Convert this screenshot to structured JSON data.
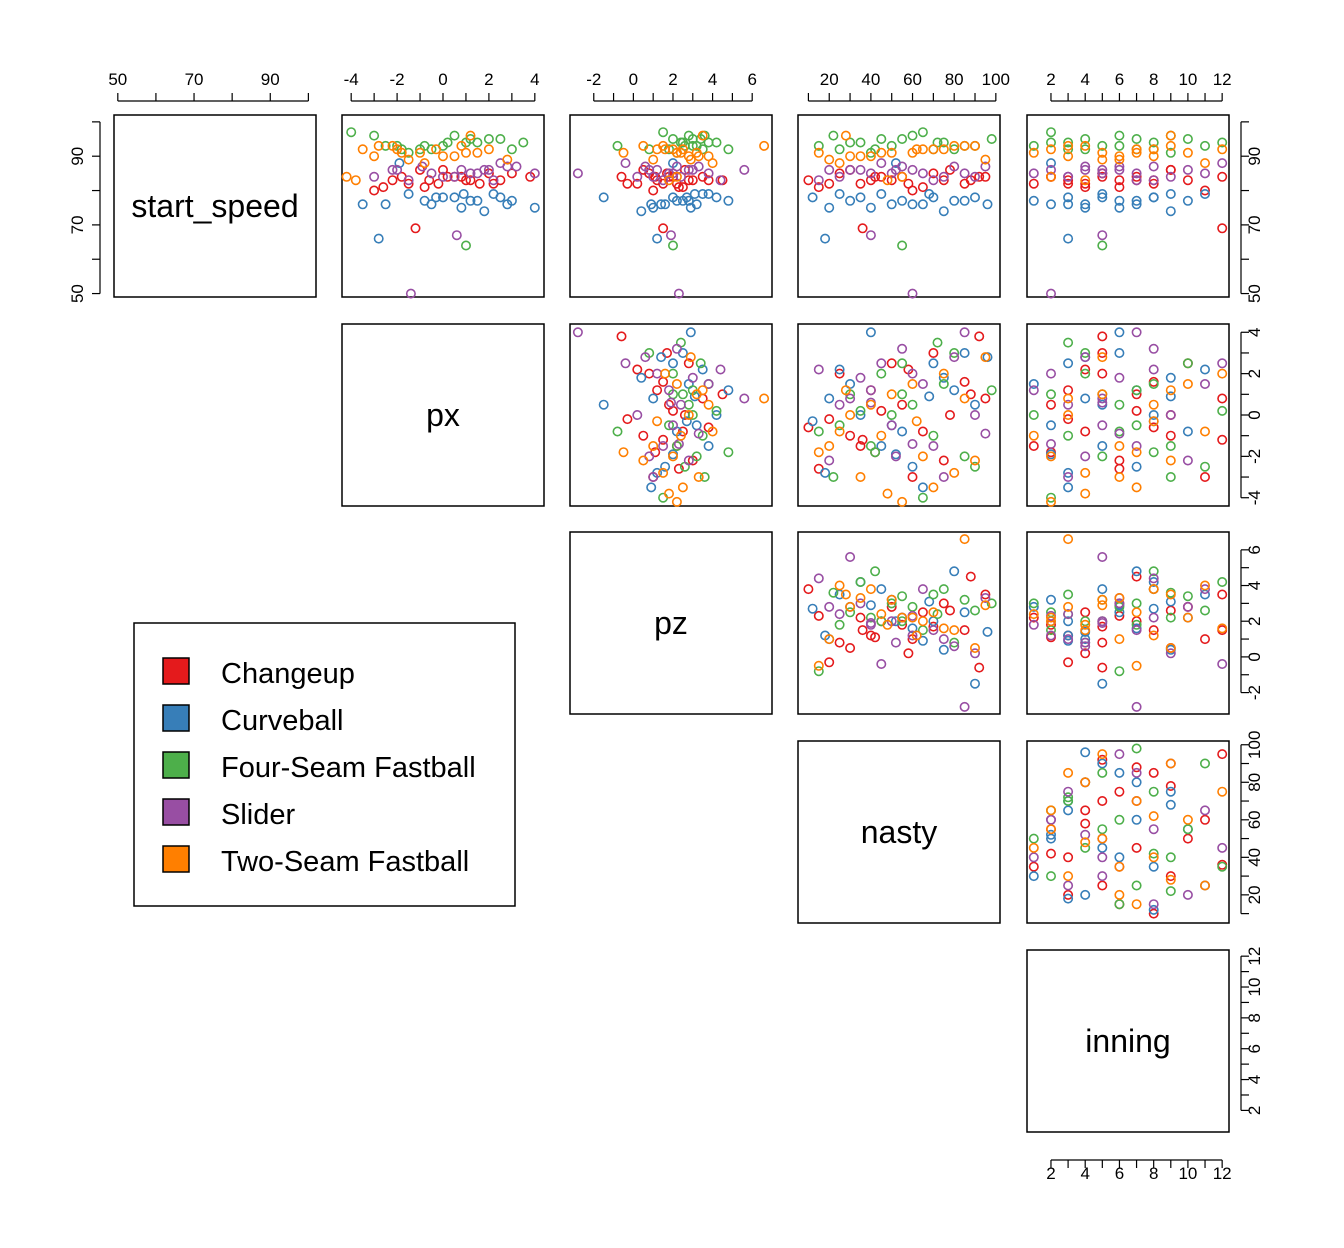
{
  "chart_data": {
    "type": "scatter",
    "variables": [
      "start_speed",
      "px",
      "pz",
      "nasty",
      "inning"
    ],
    "axes": {
      "start_speed": {
        "lim": [
          49,
          102
        ],
        "ticks": [
          50,
          60,
          70,
          80,
          90,
          100
        ],
        "labels": [
          "50",
          "70",
          "90"
        ],
        "label_values": [
          50,
          70,
          90
        ]
      },
      "px": {
        "lim": [
          -4.4,
          4.4
        ],
        "ticks": [
          -4,
          -3,
          -2,
          -1,
          0,
          1,
          2,
          3,
          4
        ],
        "labels": [
          "-4",
          "-2",
          "0",
          "2",
          "4"
        ],
        "label_values": [
          -4,
          -2,
          0,
          2,
          4
        ]
      },
      "pz": {
        "lim": [
          -3.2,
          7.0
        ],
        "ticks": [
          -2,
          -1,
          0,
          1,
          2,
          3,
          4,
          5,
          6
        ],
        "labels": [
          "-2",
          "0",
          "2",
          "4",
          "6"
        ],
        "label_values": [
          -2,
          0,
          2,
          4,
          6
        ]
      },
      "nasty": {
        "lim": [
          5,
          102
        ],
        "ticks": [
          10,
          20,
          30,
          40,
          50,
          60,
          70,
          80,
          90,
          100
        ],
        "labels": [
          "20",
          "40",
          "60",
          "80",
          "100"
        ],
        "label_values": [
          20,
          40,
          60,
          80,
          100
        ]
      },
      "inning": {
        "lim": [
          0.6,
          12.4
        ],
        "ticks": [
          2,
          3,
          4,
          5,
          6,
          7,
          8,
          9,
          10,
          11,
          12
        ],
        "labels": [
          "2",
          "4",
          "6",
          "8",
          "10",
          "12"
        ],
        "label_values": [
          2,
          4,
          6,
          8,
          10,
          12
        ]
      }
    },
    "legend": {
      "placement": "lower-left",
      "entries": [
        {
          "label": "Changeup",
          "color": "#E41A1C"
        },
        {
          "label": "Curveball",
          "color": "#377EB8"
        },
        {
          "label": "Four-Seam Fastball",
          "color": "#4DAF4A"
        },
        {
          "label": "Slider",
          "color": "#984EA3"
        },
        {
          "label": "Two-Seam Fastball",
          "color": "#FF7F00"
        }
      ]
    },
    "series": [
      {
        "name": "Changeup",
        "points": [
          [
            82,
            -1.5,
            2.2,
            35,
            1
          ],
          [
            84,
            0.5,
            1.8,
            55,
            2
          ],
          [
            83,
            1.2,
            1.2,
            40,
            3
          ],
          [
            81,
            -0.8,
            2.5,
            65,
            4
          ],
          [
            85,
            2.0,
            0.8,
            25,
            5
          ],
          [
            83,
            -2.2,
            3.0,
            75,
            6
          ],
          [
            84,
            0.2,
            2.0,
            45,
            7
          ],
          [
            82,
            1.6,
            1.5,
            85,
            8
          ],
          [
            86,
            -1.0,
            0.5,
            30,
            9
          ],
          [
            83,
            2.5,
            2.8,
            50,
            10
          ],
          [
            80,
            -3.0,
            1.0,
            60,
            11
          ],
          [
            84,
            0.8,
            3.5,
            95,
            12
          ],
          [
            82,
            -0.2,
            -0.3,
            20,
            3
          ],
          [
            85,
            3.0,
            1.7,
            70,
            5
          ],
          [
            81,
            -2.6,
            2.3,
            15,
            6
          ],
          [
            83,
            1.0,
            4.5,
            88,
            7
          ],
          [
            84,
            -1.8,
            1.1,
            42,
            2
          ],
          [
            82,
            2.2,
            0.2,
            58,
            4
          ],
          [
            86,
            0.0,
            2.6,
            78,
            9
          ],
          [
            83,
            -0.6,
            3.8,
            10,
            8
          ],
          [
            84,
            3.8,
            -0.6,
            92,
            5
          ],
          [
            69,
            -1.2,
            1.5,
            36,
            12
          ]
        ]
      },
      {
        "name": "Curveball",
        "points": [
          [
            77,
            1.5,
            2.8,
            30,
            1
          ],
          [
            76,
            -0.5,
            3.2,
            50,
            2
          ],
          [
            78,
            2.5,
            2.0,
            70,
            3
          ],
          [
            75,
            0.8,
            1.0,
            20,
            4
          ],
          [
            79,
            -1.5,
            3.8,
            45,
            5
          ],
          [
            77,
            3.0,
            2.5,
            85,
            6
          ],
          [
            76,
            -2.5,
            1.6,
            60,
            7
          ],
          [
            78,
            0.0,
            4.2,
            35,
            8
          ],
          [
            74,
            1.8,
            0.4,
            75,
            9
          ],
          [
            77,
            -0.8,
            2.2,
            55,
            10
          ],
          [
            79,
            2.2,
            3.5,
            25,
            11
          ],
          [
            76,
            -3.5,
            0.9,
            65,
            3
          ],
          [
            78,
            0.5,
            -1.5,
            90,
            5
          ],
          [
            75,
            4.0,
            2.9,
            40,
            6
          ],
          [
            66,
            -2.8,
            1.2,
            18,
            3
          ],
          [
            77,
            1.2,
            4.8,
            80,
            7
          ],
          [
            88,
            -1.9,
            2.0,
            52,
            2
          ],
          [
            76,
            2.8,
            1.4,
            96,
            4
          ],
          [
            78,
            -0.3,
            2.7,
            12,
            8
          ],
          [
            79,
            0.9,
            3.1,
            68,
            9
          ]
        ]
      },
      {
        "name": "Four-Seam Fastball",
        "points": [
          [
            93,
            0.0,
            3.0,
            50,
            1
          ],
          [
            94,
            1.0,
            2.5,
            30,
            2
          ],
          [
            92,
            -1.0,
            3.5,
            70,
            3
          ],
          [
            95,
            2.0,
            2.0,
            45,
            4
          ],
          [
            93,
            -2.0,
            3.2,
            85,
            5
          ],
          [
            96,
            0.5,
            2.8,
            60,
            6
          ],
          [
            92,
            -0.5,
            1.8,
            25,
            7
          ],
          [
            94,
            1.5,
            3.8,
            75,
            8
          ],
          [
            91,
            -1.5,
            2.2,
            40,
            9
          ],
          [
            95,
            2.5,
            3.4,
            55,
            10
          ],
          [
            93,
            -2.5,
            2.6,
            90,
            11
          ],
          [
            94,
            0.2,
            4.2,
            35,
            12
          ],
          [
            97,
            -4.0,
            1.5,
            65,
            2
          ],
          [
            92,
            3.0,
            0.8,
            80,
            4
          ],
          [
            64,
            1.0,
            2.0,
            55,
            5
          ],
          [
            93,
            -0.8,
            -0.8,
            15,
            6
          ],
          [
            95,
            1.2,
            3.0,
            98,
            7
          ],
          [
            92,
            -1.8,
            4.8,
            42,
            8
          ],
          [
            94,
            3.5,
            2.4,
            72,
            3
          ],
          [
            96,
            -3.0,
            3.6,
            22,
            9
          ]
        ]
      },
      {
        "name": "Slider",
        "points": [
          [
            85,
            1.2,
            1.8,
            40,
            1
          ],
          [
            86,
            2.0,
            1.2,
            60,
            2
          ],
          [
            84,
            0.5,
            2.4,
            25,
            3
          ],
          [
            87,
            2.8,
            0.6,
            80,
            4
          ],
          [
            85,
            -0.5,
            2.0,
            50,
            5
          ],
          [
            86,
            1.8,
            3.0,
            35,
            6
          ],
          [
            83,
            -1.5,
            1.5,
            70,
            7
          ],
          [
            87,
            3.2,
            2.2,
            55,
            8
          ],
          [
            84,
            0.0,
            0.2,
            90,
            9
          ],
          [
            86,
            -2.2,
            2.8,
            20,
            10
          ],
          [
            85,
            1.5,
            3.8,
            65,
            11
          ],
          [
            88,
            2.5,
            -0.4,
            45,
            12
          ],
          [
            84,
            -3.0,
            1.0,
            75,
            3
          ],
          [
            86,
            0.8,
            5.6,
            30,
            5
          ],
          [
            50,
            -1.4,
            2.3,
            60,
            2
          ],
          [
            67,
            0.6,
            1.9,
            40,
            5
          ],
          [
            85,
            4.0,
            -2.8,
            85,
            7
          ],
          [
            87,
            -0.9,
            3.3,
            95,
            6
          ],
          [
            83,
            2.2,
            4.4,
            15,
            8
          ],
          [
            86,
            -2.0,
            0.8,
            52,
            4
          ]
        ]
      },
      {
        "name": "Two-Seam Fastball",
        "points": [
          [
            91,
            -1.0,
            2.4,
            45,
            1
          ],
          [
            92,
            -2.0,
            2.0,
            65,
            2
          ],
          [
            90,
            0.0,
            2.8,
            30,
            3
          ],
          [
            93,
            -2.8,
            1.5,
            80,
            4
          ],
          [
            91,
            1.0,
            3.2,
            50,
            5
          ],
          [
            89,
            -1.5,
            1.0,
            20,
            6
          ],
          [
            92,
            -3.5,
            2.5,
            70,
            7
          ],
          [
            90,
            0.5,
            3.8,
            40,
            8
          ],
          [
            93,
            -2.2,
            0.5,
            90,
            9
          ],
          [
            91,
            1.5,
            2.2,
            60,
            10
          ],
          [
            88,
            -0.8,
            4.0,
            25,
            11
          ],
          [
            92,
            2.0,
            1.6,
            75,
            12
          ],
          [
            84,
            -4.2,
            2.2,
            55,
            2
          ],
          [
            90,
            -3.0,
            3.3,
            35,
            6
          ],
          [
            93,
            0.8,
            6.6,
            85,
            3
          ],
          [
            91,
            -1.8,
            -0.5,
            15,
            7
          ],
          [
            89,
            2.8,
            2.9,
            95,
            5
          ],
          [
            92,
            -0.3,
            1.2,
            62,
            8
          ],
          [
            83,
            -3.8,
            1.8,
            48,
            4
          ],
          [
            96,
            1.2,
            3.5,
            28,
            9
          ]
        ]
      }
    ]
  }
}
